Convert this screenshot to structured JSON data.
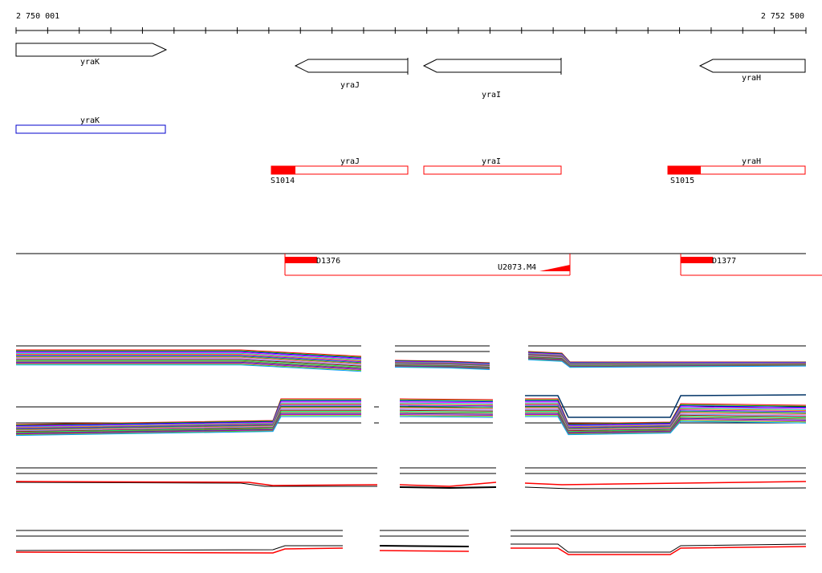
{
  "ruler": {
    "start_label": "2 750 001",
    "end_label": "2 752 500",
    "start_coord": 2750001,
    "end_coord": 2752500
  },
  "genes": [
    {
      "name": "yraK",
      "strand": "+",
      "start": 2750001,
      "end": 2750475
    },
    {
      "name": "yraJ",
      "strand": "-",
      "start": 2750887,
      "end": 2751249
    },
    {
      "name": "yraI",
      "strand": "-",
      "start": 2751301,
      "end": 2751737
    },
    {
      "name": "yraH",
      "strand": "-",
      "start": 2752206,
      "end": 2752500
    }
  ],
  "annotations_blue": [
    {
      "name": "yraK",
      "start": 2750001,
      "end": 2750475
    }
  ],
  "annotations_red": [
    {
      "name": "yraJ",
      "start": 2750811,
      "end": 2751249,
      "site_label": "S1014",
      "filled_end": 2750886
    },
    {
      "name": "yraI",
      "start": 2751301,
      "end": 2751737,
      "site_label": "",
      "filled_end": null
    },
    {
      "name": "yraH",
      "start": 2752065,
      "end": 2752500,
      "site_label": "S1015",
      "filled_end": 2752168
    }
  ],
  "transcripts": {
    "d_labels": [
      "D1376",
      "D1377"
    ],
    "u_label": "U2073.M4"
  },
  "colors": {
    "red": "#ff0000",
    "blue": "#0000cc",
    "black": "#000000"
  }
}
